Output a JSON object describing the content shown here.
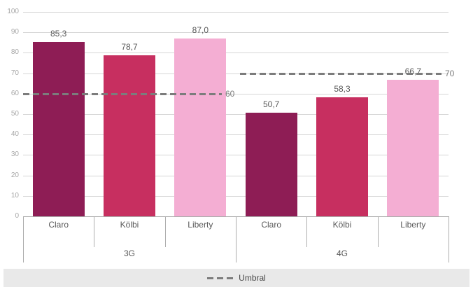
{
  "chart_data": {
    "type": "bar",
    "title": "",
    "xlabel": "",
    "ylabel": "",
    "ylim": [
      0,
      100
    ],
    "ytick_step": 10,
    "grid": true,
    "decimal_separator": ",",
    "legend": {
      "label": "Umbral",
      "symbol": "dashed-line",
      "position": "bottom"
    },
    "groups": [
      {
        "label": "3G",
        "threshold": 60,
        "threshold_label": "60",
        "bars": [
          {
            "category": "Claro",
            "value": 85.3,
            "label": "85,3",
            "color": "#8E1D55"
          },
          {
            "category": "Kölbi",
            "value": 78.7,
            "label": "78,7",
            "color": "#C72F60"
          },
          {
            "category": "Liberty",
            "value": 87.0,
            "label": "87,0",
            "color": "#F4AED3"
          }
        ]
      },
      {
        "label": "4G",
        "threshold": 70,
        "threshold_label": "70",
        "bars": [
          {
            "category": "Claro",
            "value": 50.7,
            "label": "50,7",
            "color": "#8E1D55"
          },
          {
            "category": "Kölbi",
            "value": 58.3,
            "label": "58,3",
            "color": "#C72F60"
          },
          {
            "category": "Liberty",
            "value": 66.7,
            "label": "66,7",
            "color": "#F4AED3"
          }
        ]
      }
    ],
    "colors": {
      "background": "#FFFFFF",
      "grid": "#D6D6D6",
      "axis": "#ADADAD",
      "tick_label": "#A6A6A6",
      "data_label": "#595959",
      "category_label": "#595959",
      "group_label": "#595959",
      "threshold": "#7C7C7C",
      "threshold_label": "#7C7C7C",
      "legend_bg": "#E9E9E9",
      "legend_text": "#474747"
    }
  }
}
